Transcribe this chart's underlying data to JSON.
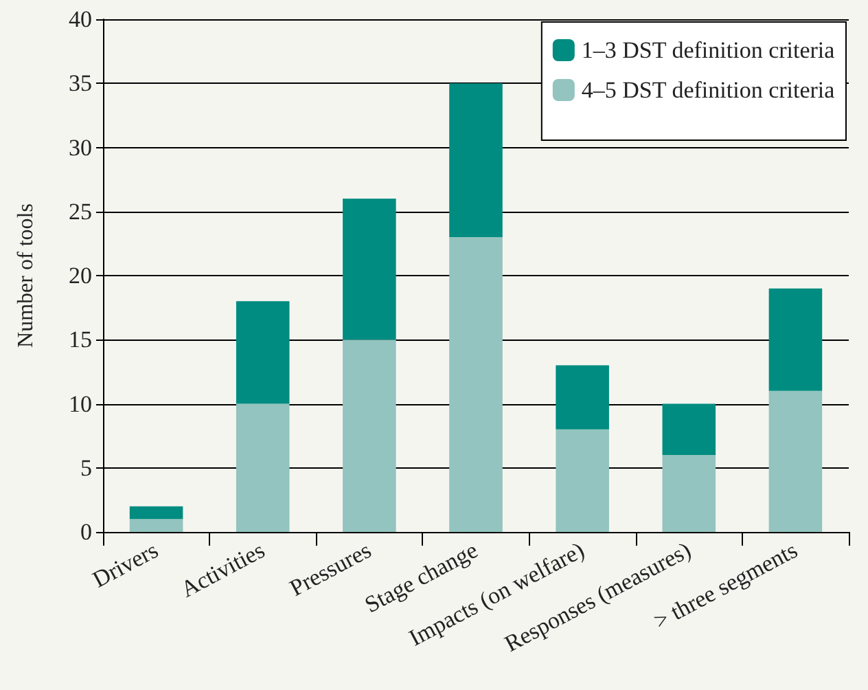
{
  "chart_data": {
    "type": "bar",
    "ylabel": "Number of tools",
    "categories": [
      "Drivers",
      "Activities",
      "Pressures",
      "Stage change",
      "Impacts (on welfare)",
      "Responses (measures)",
      "> three segments"
    ],
    "series": [
      {
        "name": "4–5 DST definition criteria",
        "color": "#93c4bf",
        "values": [
          1,
          10,
          15,
          23,
          8,
          6,
          11
        ]
      },
      {
        "name": "1–3 DST definition criteria",
        "color": "#008c80",
        "values": [
          1,
          8,
          11,
          12,
          5,
          4,
          8
        ]
      }
    ],
    "stacked": true,
    "ylim": [
      0,
      40
    ],
    "yticks": [
      0,
      5,
      10,
      15,
      20,
      25,
      30,
      35,
      40
    ],
    "grid": "y",
    "legend": "top right"
  }
}
